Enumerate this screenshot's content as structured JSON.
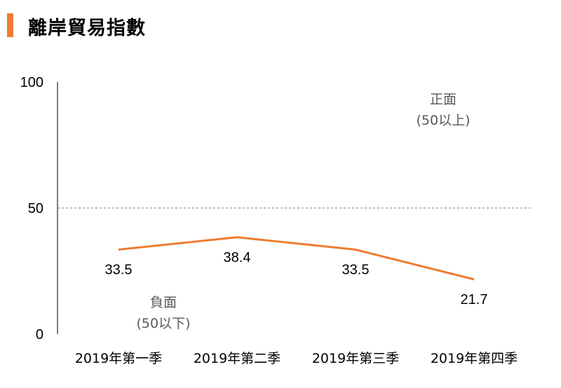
{
  "title": "離岸貿易指數",
  "colors": {
    "accent": "#ED7D31",
    "line": "#ED7D31",
    "reference": "#7F7F7F",
    "annotation": "#595959"
  },
  "chart_data": {
    "type": "line",
    "title": "離岸貿易指數",
    "xlabel": "",
    "ylabel": "",
    "categories": [
      "2019年第一季",
      "2019年第二季",
      "2019年第三季",
      "2019年第四季"
    ],
    "values": [
      33.5,
      38.4,
      33.5,
      21.7
    ],
    "data_labels": [
      "33.5",
      "38.4",
      "33.5",
      "21.7"
    ],
    "ylim": [
      0,
      100
    ],
    "yticks": [
      0,
      50,
      100
    ],
    "ytick_labels": [
      "0",
      "50",
      "100"
    ],
    "reference_line": {
      "value": 50,
      "style": "dashed"
    },
    "annotations": {
      "positive": {
        "line1": "正面",
        "line2": "(50以上)"
      },
      "negative": {
        "line1": "負面",
        "line2": "(50以下)"
      }
    },
    "grid": false,
    "legend": "none"
  }
}
